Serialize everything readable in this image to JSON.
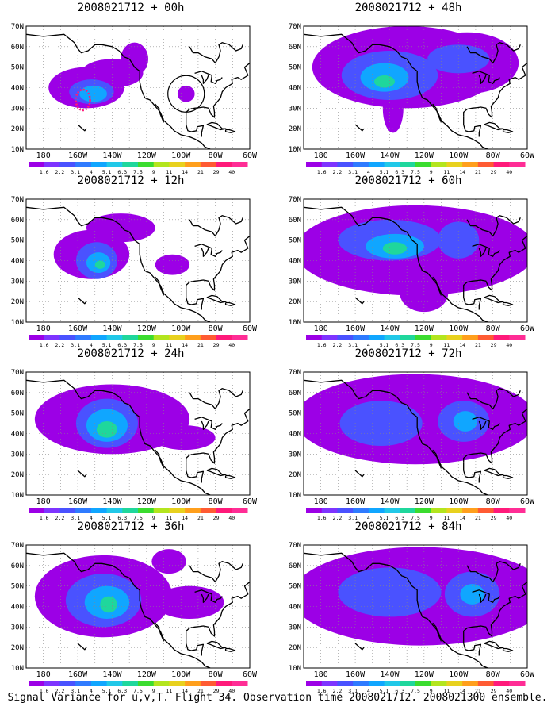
{
  "caption": "Signal Variance for u,v,T. Flight 34. Observation time 2008021712. 2008021300 ensemble.",
  "lat_labels": [
    "70N",
    "60N",
    "50N",
    "40N",
    "30N",
    "20N",
    "10N"
  ],
  "lon_labels": [
    "180",
    "160W",
    "140W",
    "120W",
    "100W",
    "80W",
    "60W"
  ],
  "color_scale": {
    "labels": [
      "1.6",
      "2.2",
      "3.1",
      "4",
      "5.1",
      "6.3",
      "7.5",
      "9",
      "11",
      "14",
      "21",
      "29",
      "40"
    ],
    "colors": [
      "#9c00e6",
      "#7e34ff",
      "#4a52ff",
      "#2f7bff",
      "#10a6ff",
      "#21c8e8",
      "#1fd79c",
      "#3bdc2f",
      "#b3e51e",
      "#e8d11e",
      "#ff9f1c",
      "#ff5b33",
      "#ff1a7a",
      "#ff2d95"
    ]
  },
  "panels": [
    {
      "id": "p00",
      "title": "2008021712 + 00h",
      "blobs": [
        {
          "cx": 155,
          "cy": 40,
          "rx": 22,
          "ry": 10,
          "l": 0
        },
        {
          "cx": 140,
          "cy": 47,
          "rx": 18,
          "ry": 7,
          "l": 0
        },
        {
          "cx": 152,
          "cy": 38,
          "rx": 13,
          "ry": 6,
          "l": 1
        },
        {
          "cx": 151,
          "cy": 37,
          "rx": 8,
          "ry": 4,
          "l": 2
        },
        {
          "cx": 127,
          "cy": 54,
          "rx": 8,
          "ry": 8,
          "l": 0
        },
        {
          "cx": 97,
          "cy": 37,
          "rx": 5,
          "ry": 4,
          "l": 0
        }
      ],
      "marker_circle": true,
      "marker_dash": true
    },
    {
      "id": "p48",
      "title": "2008021712 + 48h",
      "blobs": [
        {
          "cx": 130,
          "cy": 50,
          "rx": 55,
          "ry": 20,
          "l": 0
        },
        {
          "cx": 95,
          "cy": 52,
          "rx": 30,
          "ry": 15,
          "l": 0
        },
        {
          "cx": 138,
          "cy": 30,
          "rx": 6,
          "ry": 12,
          "l": 0
        },
        {
          "cx": 140,
          "cy": 46,
          "rx": 28,
          "ry": 12,
          "l": 1
        },
        {
          "cx": 100,
          "cy": 54,
          "rx": 18,
          "ry": 7,
          "l": 1
        },
        {
          "cx": 143,
          "cy": 45,
          "rx": 14,
          "ry": 7,
          "l": 2
        },
        {
          "cx": 143,
          "cy": 43,
          "rx": 6,
          "ry": 3,
          "l": 3
        }
      ]
    },
    {
      "id": "p12",
      "title": "2008021712 + 12h",
      "blobs": [
        {
          "cx": 152,
          "cy": 43,
          "rx": 22,
          "ry": 12,
          "l": 0
        },
        {
          "cx": 135,
          "cy": 56,
          "rx": 20,
          "ry": 7,
          "l": 0
        },
        {
          "cx": 105,
          "cy": 38,
          "rx": 10,
          "ry": 5,
          "l": 0
        },
        {
          "cx": 149,
          "cy": 40,
          "rx": 12,
          "ry": 9,
          "l": 1
        },
        {
          "cx": 148,
          "cy": 39,
          "rx": 7,
          "ry": 5,
          "l": 2
        },
        {
          "cx": 147,
          "cy": 38,
          "rx": 3,
          "ry": 2,
          "l": 3
        }
      ]
    },
    {
      "id": "p60",
      "title": "2008021712 + 60h",
      "blobs": [
        {
          "cx": 125,
          "cy": 45,
          "rx": 70,
          "ry": 22,
          "l": 0
        },
        {
          "cx": 120,
          "cy": 24,
          "rx": 14,
          "ry": 9,
          "l": 0
        },
        {
          "cx": 140,
          "cy": 50,
          "rx": 30,
          "ry": 10,
          "l": 1
        },
        {
          "cx": 100,
          "cy": 50,
          "rx": 12,
          "ry": 9,
          "l": 1
        },
        {
          "cx": 137,
          "cy": 47,
          "rx": 17,
          "ry": 6,
          "l": 2
        },
        {
          "cx": 137,
          "cy": 46,
          "rx": 7,
          "ry": 3,
          "l": 3
        }
      ]
    },
    {
      "id": "p24",
      "title": "2008021712 + 24h",
      "blobs": [
        {
          "cx": 140,
          "cy": 47,
          "rx": 45,
          "ry": 17,
          "l": 0
        },
        {
          "cx": 98,
          "cy": 38,
          "rx": 18,
          "ry": 6,
          "l": 0
        },
        {
          "cx": 143,
          "cy": 45,
          "rx": 18,
          "ry": 12,
          "l": 1
        },
        {
          "cx": 143,
          "cy": 44,
          "rx": 12,
          "ry": 8,
          "l": 2
        },
        {
          "cx": 143,
          "cy": 42,
          "rx": 6,
          "ry": 4,
          "l": 3
        }
      ]
    },
    {
      "id": "p72",
      "title": "2008021712 + 72h",
      "blobs": [
        {
          "cx": 125,
          "cy": 47,
          "rx": 70,
          "ry": 22,
          "l": 0
        },
        {
          "cx": 145,
          "cy": 45,
          "rx": 24,
          "ry": 11,
          "l": 1
        },
        {
          "cx": 97,
          "cy": 46,
          "rx": 15,
          "ry": 10,
          "l": 1
        },
        {
          "cx": 96,
          "cy": 46,
          "rx": 7,
          "ry": 5,
          "l": 2
        }
      ]
    },
    {
      "id": "p36",
      "title": "2008021712 + 36h",
      "blobs": [
        {
          "cx": 145,
          "cy": 45,
          "rx": 40,
          "ry": 20,
          "l": 0
        },
        {
          "cx": 95,
          "cy": 42,
          "rx": 20,
          "ry": 8,
          "l": 0
        },
        {
          "cx": 107,
          "cy": 62,
          "rx": 10,
          "ry": 6,
          "l": 0
        },
        {
          "cx": 145,
          "cy": 43,
          "rx": 22,
          "ry": 13,
          "l": 1
        },
        {
          "cx": 143,
          "cy": 42,
          "rx": 13,
          "ry": 8,
          "l": 2
        },
        {
          "cx": 142,
          "cy": 41,
          "rx": 5,
          "ry": 4,
          "l": 3
        }
      ]
    },
    {
      "id": "p84",
      "title": "2008021712 + 84h",
      "blobs": [
        {
          "cx": 122,
          "cy": 45,
          "rx": 75,
          "ry": 24,
          "l": 0
        },
        {
          "cx": 140,
          "cy": 47,
          "rx": 30,
          "ry": 12,
          "l": 1
        },
        {
          "cx": 92,
          "cy": 46,
          "rx": 16,
          "ry": 11,
          "l": 1
        },
        {
          "cx": 92,
          "cy": 46,
          "rx": 7,
          "ry": 5,
          "l": 2
        }
      ]
    }
  ]
}
